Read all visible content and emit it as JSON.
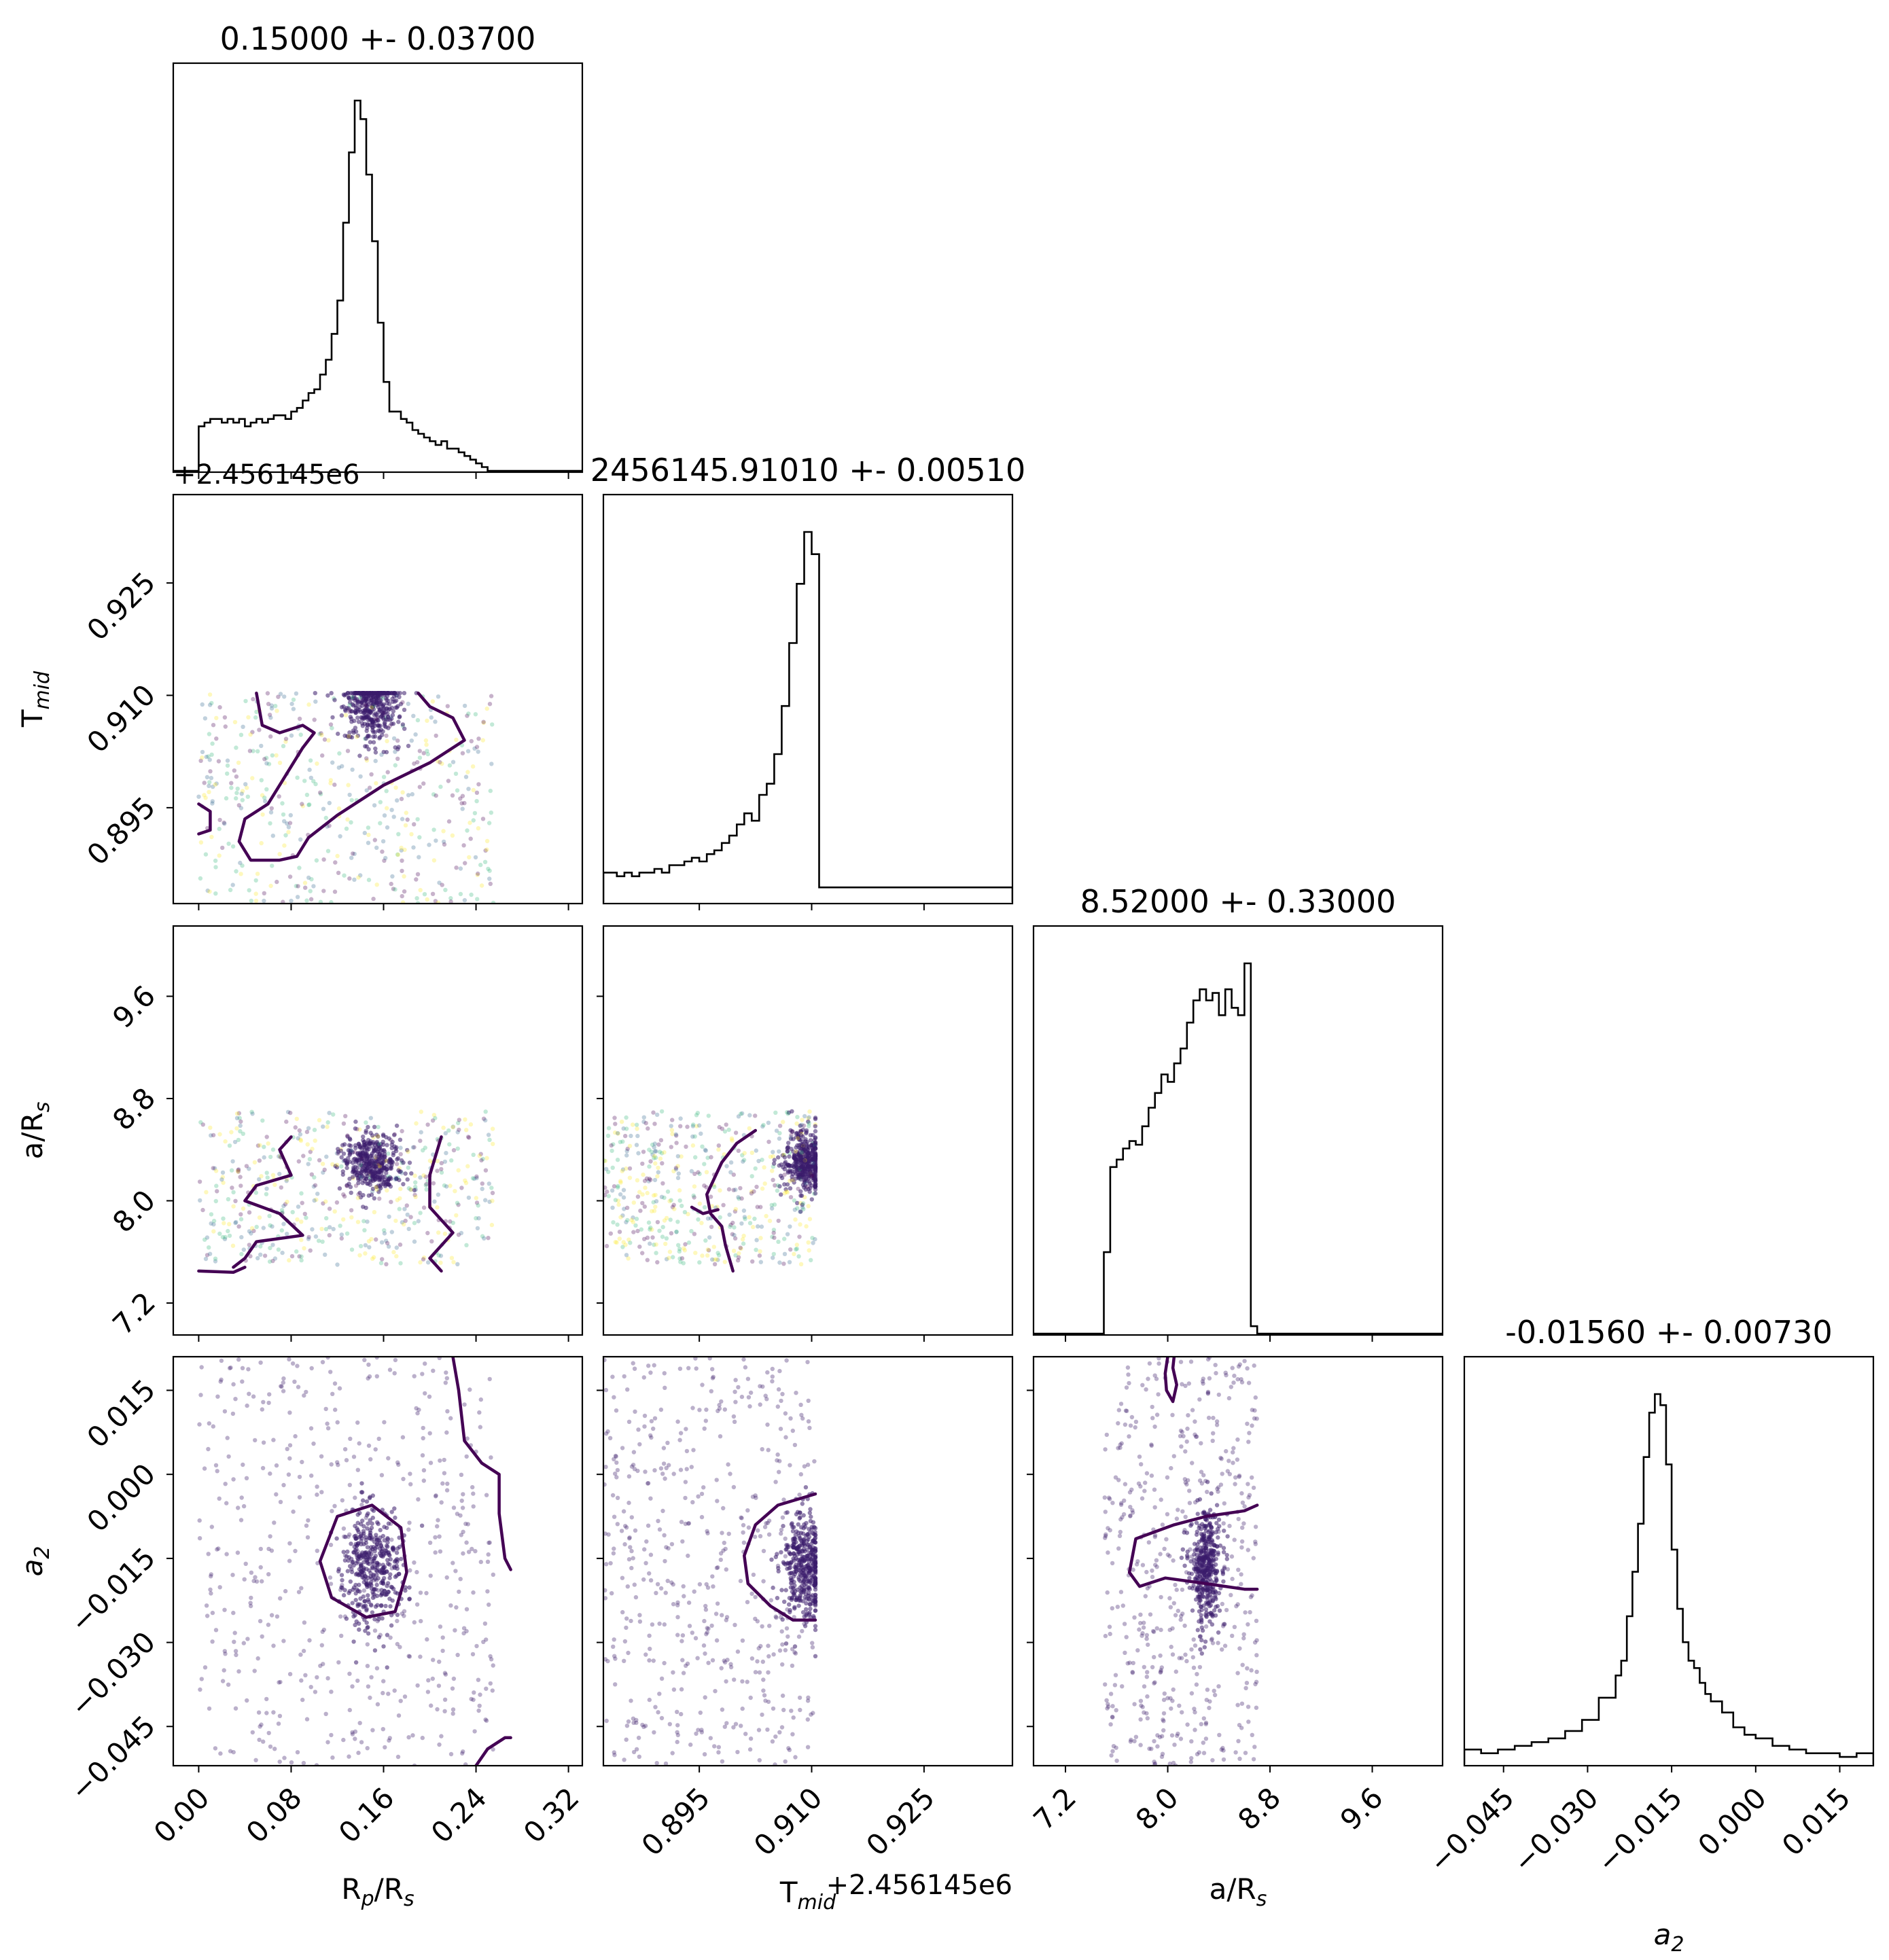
{
  "figure_type": "corner plot",
  "colors": {
    "histogram_line": "#000000",
    "scatter_points": "#3b1c6b",
    "scatter_point_mix": [
      "#440154",
      "#31688e",
      "#35b779",
      "#fde725"
    ],
    "contour": "#440154",
    "axes": "#000000",
    "background": "#ffffff"
  },
  "chart_data": {
    "type": "corner",
    "parameters": [
      {
        "key": "rp",
        "xlabel_main": "R",
        "xlabel_sub": "p",
        "xlabel_rest": "/R",
        "xlabel_sub2": "s",
        "ylabel_main": "",
        "ylabel_sub": "",
        "range": [
          -0.022,
          0.332
        ],
        "ticks": [
          "0.00",
          "0.08",
          "0.16",
          "0.24",
          "0.32"
        ],
        "tick_values": [
          0.0,
          0.08,
          0.16,
          0.24,
          0.32
        ],
        "title": "0.15000 +- 0.03700",
        "offset": ""
      },
      {
        "key": "tmid",
        "xlabel_main": "T",
        "xlabel_sub": "mid",
        "xlabel_rest": "",
        "xlabel_sub2": "",
        "range": [
          0.8822,
          0.9368
        ],
        "ticks": [
          "0.895",
          "0.910",
          "0.925"
        ],
        "tick_values": [
          0.895,
          0.91,
          0.925
        ],
        "title": "2456145.91010 +- 0.00510",
        "offset": "+2.456145e6"
      },
      {
        "key": "ars",
        "xlabel_main": "a/R",
        "xlabel_sub": "s",
        "xlabel_rest": "",
        "xlabel_sub2": "",
        "range": [
          6.95,
          10.15
        ],
        "ticks": [
          "7.2",
          "8.0",
          "8.8",
          "9.6"
        ],
        "tick_values": [
          7.2,
          8.0,
          8.8,
          9.6
        ],
        "title": "8.52000 +- 0.33000",
        "offset": ""
      },
      {
        "key": "a2",
        "xlabel_main": "a",
        "xlabel_sub": "2",
        "xlabel_rest": "",
        "xlabel_sub2": "",
        "range": [
          -0.052,
          0.021
        ],
        "ticks": [
          "−0.045",
          "−0.030",
          "−0.015",
          "0.000",
          "0.015"
        ],
        "tick_values": [
          -0.045,
          -0.03,
          -0.015,
          0.0,
          0.015
        ],
        "title": "-0.01560 +- 0.00730",
        "offset": ""
      }
    ],
    "ylabels": [
      {
        "row": 1,
        "main": "T",
        "sub": "mid"
      },
      {
        "row": 2,
        "main": "a/R",
        "sub": "s"
      },
      {
        "row": 3,
        "main": "a",
        "sub": "2",
        "italic": true
      }
    ],
    "histograms": [
      {
        "param": "rp",
        "x": [
          0.0,
          0.005,
          0.01,
          0.015,
          0.02,
          0.025,
          0.03,
          0.035,
          0.04,
          0.045,
          0.05,
          0.055,
          0.06,
          0.065,
          0.07,
          0.075,
          0.08,
          0.085,
          0.09,
          0.095,
          0.1,
          0.105,
          0.11,
          0.115,
          0.12,
          0.125,
          0.13,
          0.135,
          0.14,
          0.145,
          0.15,
          0.155,
          0.16,
          0.165,
          0.17,
          0.175,
          0.18,
          0.185,
          0.19,
          0.195,
          0.2,
          0.205,
          0.21,
          0.215,
          0.22,
          0.225,
          0.23,
          0.235,
          0.24,
          0.245,
          0.25,
          0.255
        ],
        "counts": [
          0.12,
          0.13,
          0.14,
          0.14,
          0.13,
          0.14,
          0.13,
          0.14,
          0.12,
          0.13,
          0.14,
          0.13,
          0.14,
          0.15,
          0.15,
          0.14,
          0.16,
          0.17,
          0.19,
          0.21,
          0.22,
          0.26,
          0.3,
          0.37,
          0.46,
          0.67,
          0.86,
          1.0,
          0.95,
          0.8,
          0.62,
          0.4,
          0.24,
          0.16,
          0.16,
          0.14,
          0.13,
          0.11,
          0.1,
          0.09,
          0.08,
          0.07,
          0.08,
          0.06,
          0.06,
          0.05,
          0.04,
          0.03,
          0.02,
          0.01,
          0.0,
          0.0
        ]
      },
      {
        "param": "tmid",
        "x": [
          0.8822,
          0.883,
          0.884,
          0.885,
          0.886,
          0.887,
          0.888,
          0.889,
          0.89,
          0.891,
          0.892,
          0.893,
          0.894,
          0.895,
          0.896,
          0.897,
          0.898,
          0.899,
          0.9,
          0.901,
          0.902,
          0.903,
          0.904,
          0.905,
          0.906,
          0.907,
          0.908,
          0.909,
          0.91,
          0.911
        ],
        "counts": [
          0.08,
          0.08,
          0.07,
          0.08,
          0.07,
          0.08,
          0.08,
          0.09,
          0.08,
          0.1,
          0.1,
          0.11,
          0.12,
          0.11,
          0.13,
          0.14,
          0.16,
          0.18,
          0.21,
          0.24,
          0.22,
          0.29,
          0.32,
          0.4,
          0.53,
          0.7,
          0.86,
          1.0,
          0.94,
          0.04
        ]
      },
      {
        "param": "ars",
        "x": [
          7.5,
          7.55,
          7.6,
          7.65,
          7.7,
          7.75,
          7.8,
          7.85,
          7.9,
          7.95,
          8.0,
          8.05,
          8.1,
          8.15,
          8.2,
          8.25,
          8.3,
          8.35,
          8.4,
          8.45,
          8.5,
          8.55,
          8.6,
          8.65,
          8.7
        ],
        "counts": [
          0.22,
          0.45,
          0.47,
          0.5,
          0.52,
          0.51,
          0.56,
          0.61,
          0.65,
          0.7,
          0.68,
          0.73,
          0.77,
          0.84,
          0.9,
          0.93,
          0.9,
          0.92,
          0.86,
          0.93,
          0.88,
          0.86,
          1.0,
          0.02,
          0.0
        ]
      },
      {
        "param": "a2",
        "x": [
          -0.052,
          -0.049,
          -0.046,
          -0.043,
          -0.04,
          -0.037,
          -0.034,
          -0.031,
          -0.028,
          -0.025,
          -0.024,
          -0.023,
          -0.022,
          -0.021,
          -0.02,
          -0.019,
          -0.018,
          -0.017,
          -0.016,
          -0.015,
          -0.014,
          -0.013,
          -0.012,
          -0.011,
          -0.01,
          -0.009,
          -0.008,
          -0.006,
          -0.004,
          -0.002,
          0.0,
          0.003,
          0.006,
          0.009,
          0.012,
          0.015,
          0.018
        ],
        "counts": [
          0.04,
          0.03,
          0.04,
          0.05,
          0.06,
          0.07,
          0.09,
          0.12,
          0.18,
          0.24,
          0.28,
          0.4,
          0.52,
          0.65,
          0.83,
          0.95,
          1.0,
          0.97,
          0.81,
          0.58,
          0.42,
          0.33,
          0.28,
          0.26,
          0.22,
          0.19,
          0.17,
          0.14,
          0.1,
          0.08,
          0.07,
          0.05,
          0.04,
          0.03,
          0.03,
          0.02,
          0.03
        ]
      }
    ],
    "scatter_regions": [
      {
        "row": 1,
        "col": 0,
        "x_range": [
          0.0,
          0.255
        ],
        "y_range": [
          0.8822,
          0.9103
        ],
        "dense_center": [
          0.15,
          0.909
        ],
        "n_points": 900
      },
      {
        "row": 2,
        "col": 0,
        "x_range": [
          0.0,
          0.255
        ],
        "y_range": [
          7.5,
          8.7
        ],
        "dense_center": [
          0.15,
          8.3
        ],
        "n_points": 900
      },
      {
        "row": 2,
        "col": 1,
        "x_range": [
          0.8822,
          0.9105
        ],
        "y_range": [
          7.5,
          8.7
        ],
        "dense_center": [
          0.909,
          8.3
        ],
        "n_points": 900
      },
      {
        "row": 3,
        "col": 0,
        "x_range": [
          0.0,
          0.255
        ],
        "y_range": [
          -0.052,
          0.021
        ],
        "dense_center": [
          0.15,
          -0.0165
        ],
        "n_points": 900
      },
      {
        "row": 3,
        "col": 1,
        "x_range": [
          0.8822,
          0.9105
        ],
        "y_range": [
          -0.052,
          0.021
        ],
        "dense_center": [
          0.909,
          -0.0165
        ],
        "n_points": 900
      },
      {
        "row": 3,
        "col": 2,
        "x_range": [
          7.5,
          8.7
        ],
        "y_range": [
          -0.052,
          0.021
        ],
        "dense_center": [
          8.3,
          -0.0165
        ],
        "n_points": 900
      }
    ],
    "contours": [
      {
        "row": 1,
        "col": 0,
        "paths": [
          [
            [
              0.05,
              0.9103
            ],
            [
              0.055,
              0.906
            ],
            [
              0.07,
              0.905
            ],
            [
              0.09,
              0.906
            ],
            [
              0.1,
              0.905
            ],
            [
              0.09,
              0.903
            ],
            [
              0.08,
              0.9005
            ],
            [
              0.07,
              0.898
            ],
            [
              0.06,
              0.8955
            ],
            [
              0.04,
              0.8935
            ],
            [
              0.035,
              0.8905
            ],
            [
              0.045,
              0.888
            ],
            [
              0.07,
              0.888
            ],
            [
              0.085,
              0.8885
            ],
            [
              0.095,
              0.891
            ],
            [
              0.12,
              0.894
            ],
            [
              0.16,
              0.898
            ],
            [
              0.2,
              0.901
            ],
            [
              0.23,
              0.904
            ],
            [
              0.22,
              0.907
            ],
            [
              0.2,
              0.9085
            ],
            [
              0.19,
              0.9103
            ]
          ],
          [
            [
              0.0,
              0.8955
            ],
            [
              0.01,
              0.8945
            ],
            [
              0.01,
              0.892
            ],
            [
              0.0,
              0.8915
            ]
          ]
        ]
      },
      {
        "row": 2,
        "col": 0,
        "paths": [
          [
            [
              0.0,
              7.45
            ],
            [
              0.03,
              7.44
            ],
            [
              0.04,
              7.48
            ]
          ],
          [
            [
              0.03,
              7.48
            ],
            [
              0.04,
              7.55
            ],
            [
              0.05,
              7.68
            ],
            [
              0.09,
              7.73
            ],
            [
              0.07,
              7.9
            ],
            [
              0.04,
              8.0
            ],
            [
              0.05,
              8.12
            ],
            [
              0.08,
              8.2
            ],
            [
              0.07,
              8.4
            ],
            [
              0.08,
              8.5
            ]
          ],
          [
            [
              0.21,
              7.45
            ],
            [
              0.2,
              7.55
            ],
            [
              0.22,
              7.75
            ],
            [
              0.2,
              7.95
            ],
            [
              0.2,
              8.2
            ],
            [
              0.21,
              8.5
            ]
          ]
        ]
      },
      {
        "row": 2,
        "col": 1,
        "paths": [
          [
            [
              0.8995,
              7.45
            ],
            [
              0.8985,
              7.65
            ],
            [
              0.898,
              7.8
            ],
            [
              0.8965,
              7.9
            ],
            [
              0.896,
              8.05
            ],
            [
              0.898,
              8.3
            ],
            [
              0.9,
              8.45
            ],
            [
              0.9025,
              8.55
            ]
          ],
          [
            [
              0.894,
              7.95
            ],
            [
              0.8955,
              7.9
            ],
            [
              0.8975,
              7.93
            ]
          ]
        ]
      },
      {
        "row": 3,
        "col": 0,
        "paths": [
          [
            [
              0.145,
              -0.0255
            ],
            [
              0.115,
              -0.022
            ],
            [
              0.105,
              -0.0155
            ],
            [
              0.12,
              -0.0075
            ],
            [
              0.15,
              -0.0055
            ],
            [
              0.175,
              -0.0095
            ],
            [
              0.18,
              -0.0175
            ],
            [
              0.17,
              -0.0245
            ],
            [
              0.145,
              -0.0255
            ]
          ],
          [
            [
              0.22,
              0.021
            ],
            [
              0.225,
              0.015
            ],
            [
              0.23,
              0.006
            ],
            [
              0.245,
              0.002
            ],
            [
              0.26,
              0.0
            ],
            [
              0.26,
              -0.007
            ],
            [
              0.265,
              -0.015
            ],
            [
              0.27,
              -0.017
            ]
          ],
          [
            [
              0.24,
              -0.052
            ],
            [
              0.25,
              -0.049
            ],
            [
              0.265,
              -0.047
            ],
            [
              0.27,
              -0.047
            ]
          ]
        ]
      },
      {
        "row": 3,
        "col": 1,
        "paths": [
          [
            [
              0.9105,
              -0.0035
            ],
            [
              0.9055,
              -0.0055
            ],
            [
              0.9025,
              -0.009
            ],
            [
              0.901,
              -0.0145
            ],
            [
              0.9015,
              -0.0195
            ],
            [
              0.9045,
              -0.0235
            ],
            [
              0.9075,
              -0.026
            ],
            [
              0.9105,
              -0.026
            ]
          ]
        ]
      },
      {
        "row": 3,
        "col": 2,
        "paths": [
          [
            [
              8.0,
              0.021
            ],
            [
              7.98,
              0.018
            ],
            [
              7.99,
              0.015
            ],
            [
              8.04,
              0.013
            ],
            [
              8.07,
              0.016
            ],
            [
              8.04,
              0.019
            ],
            [
              8.05,
              0.021
            ]
          ],
          [
            [
              8.7,
              -0.0055
            ],
            [
              8.6,
              -0.0065
            ],
            [
              8.3,
              -0.0075
            ],
            [
              8.05,
              -0.009
            ],
            [
              7.75,
              -0.0115
            ],
            [
              7.7,
              -0.0175
            ],
            [
              7.78,
              -0.02
            ],
            [
              7.98,
              -0.0185
            ],
            [
              8.3,
              -0.0195
            ],
            [
              8.6,
              -0.0205
            ],
            [
              8.7,
              -0.0205
            ]
          ]
        ]
      }
    ]
  }
}
